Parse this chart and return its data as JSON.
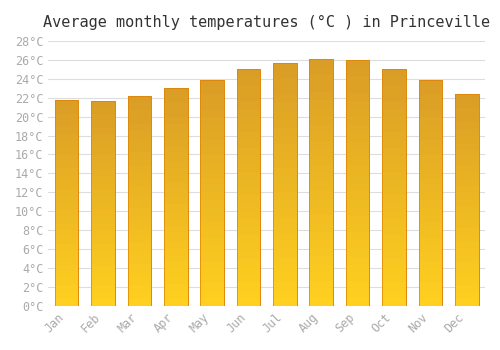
{
  "title": "Average monthly temperatures (°C ) in Princeville",
  "months": [
    "Jan",
    "Feb",
    "Mar",
    "Apr",
    "May",
    "Jun",
    "Jul",
    "Aug",
    "Sep",
    "Oct",
    "Nov",
    "Dec"
  ],
  "values": [
    21.8,
    21.7,
    22.2,
    23.0,
    23.9,
    25.0,
    25.7,
    26.1,
    26.0,
    25.0,
    23.9,
    22.4
  ],
  "bar_color_top": "#FFA500",
  "bar_color_bottom": "#FFD070",
  "bar_edge_color": "#E08000",
  "background_color": "#FFFFFF",
  "grid_color": "#DDDDDD",
  "text_color": "#AAAAAA",
  "title_color": "#333333",
  "ylim": [
    0,
    28
  ],
  "ytick_step": 2,
  "title_fontsize": 11,
  "tick_fontsize": 8.5,
  "font_family": "monospace"
}
